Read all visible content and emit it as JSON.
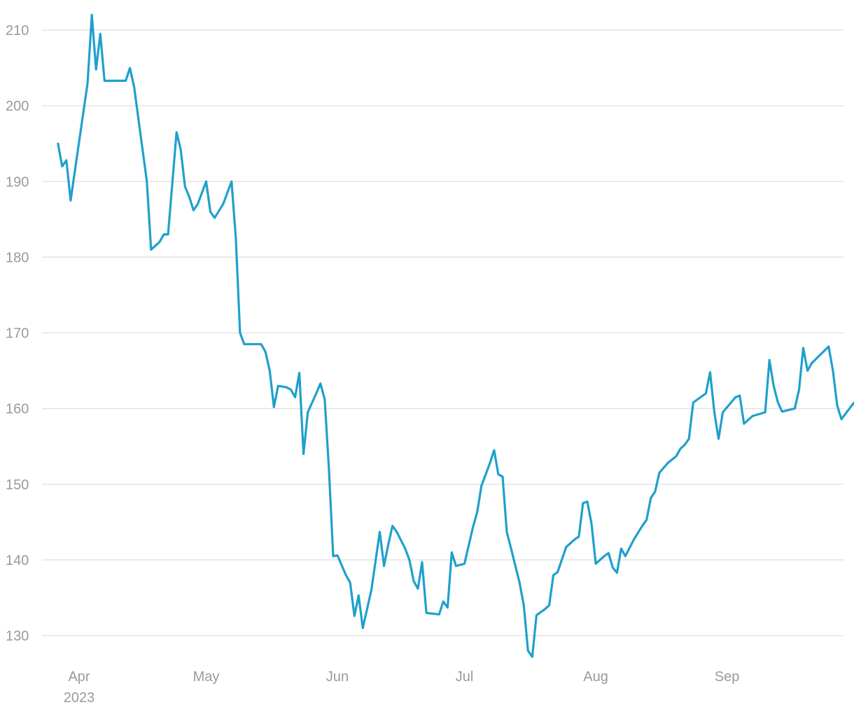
{
  "chart_data": {
    "type": "line",
    "title": "",
    "xlabel": "",
    "ylabel": "",
    "grid": "horizontal",
    "legend": "none",
    "series_color": "#1fa0cc",
    "grid_color": "#e3e3e3",
    "label_color": "#9a9a9a",
    "ylim": [
      126,
      212
    ],
    "yticks": [
      130,
      140,
      150,
      160,
      170,
      180,
      190,
      200,
      210
    ],
    "xlim": [
      "2023-03-24",
      "2023-09-27"
    ],
    "xticks": [
      {
        "date": "2023-04-01",
        "label": "Apr",
        "sublabel": "2023"
      },
      {
        "date": "2023-05-01",
        "label": "May",
        "sublabel": ""
      },
      {
        "date": "2023-06-01",
        "label": "Jun",
        "sublabel": ""
      },
      {
        "date": "2023-07-01",
        "label": "Jul",
        "sublabel": ""
      },
      {
        "date": "2023-08-01",
        "label": "Aug",
        "sublabel": ""
      },
      {
        "date": "2023-09-01",
        "label": "Sep",
        "sublabel": ""
      }
    ],
    "series": [
      {
        "points": [
          [
            "2023-03-27",
            195.0
          ],
          [
            "2023-03-28",
            192.0
          ],
          [
            "2023-03-29",
            192.8
          ],
          [
            "2023-03-30",
            187.5
          ],
          [
            "2023-04-03",
            203.0
          ],
          [
            "2023-04-04",
            212.0
          ],
          [
            "2023-04-05",
            204.8
          ],
          [
            "2023-04-06",
            209.5
          ],
          [
            "2023-04-07",
            203.3
          ],
          [
            "2023-04-10",
            203.3
          ],
          [
            "2023-04-11",
            203.3
          ],
          [
            "2023-04-12",
            203.3
          ],
          [
            "2023-04-13",
            205.0
          ],
          [
            "2023-04-14",
            202.5
          ],
          [
            "2023-04-17",
            190.0
          ],
          [
            "2023-04-18",
            181.0
          ],
          [
            "2023-04-20",
            182.0
          ],
          [
            "2023-04-21",
            183.0
          ],
          [
            "2023-04-22",
            183.0
          ],
          [
            "2023-04-24",
            196.5
          ],
          [
            "2023-04-25",
            194.2
          ],
          [
            "2023-04-26",
            189.3
          ],
          [
            "2023-04-27",
            188.0
          ],
          [
            "2023-04-28",
            186.2
          ],
          [
            "2023-04-29",
            187.0
          ],
          [
            "2023-05-01",
            190.0
          ],
          [
            "2023-05-02",
            186.0
          ],
          [
            "2023-05-03",
            185.2
          ],
          [
            "2023-05-05",
            187.0
          ],
          [
            "2023-05-07",
            190.0
          ],
          [
            "2023-05-08",
            182.5
          ],
          [
            "2023-05-09",
            170.0
          ],
          [
            "2023-05-10",
            168.5
          ],
          [
            "2023-05-12",
            168.5
          ],
          [
            "2023-05-14",
            168.5
          ],
          [
            "2023-05-15",
            167.5
          ],
          [
            "2023-05-16",
            165.0
          ],
          [
            "2023-05-17",
            160.2
          ],
          [
            "2023-05-18",
            163.0
          ],
          [
            "2023-05-20",
            162.8
          ],
          [
            "2023-05-21",
            162.5
          ],
          [
            "2023-05-22",
            161.5
          ],
          [
            "2023-05-23",
            164.7
          ],
          [
            "2023-05-24",
            154.0
          ],
          [
            "2023-05-25",
            159.5
          ],
          [
            "2023-05-27",
            162.0
          ],
          [
            "2023-05-28",
            163.3
          ],
          [
            "2023-05-29",
            161.2
          ],
          [
            "2023-05-30",
            152.0
          ],
          [
            "2023-05-31",
            140.5
          ],
          [
            "2023-06-01",
            140.6
          ],
          [
            "2023-06-03",
            138.0
          ],
          [
            "2023-06-04",
            137.0
          ],
          [
            "2023-06-05",
            132.6
          ],
          [
            "2023-06-06",
            135.3
          ],
          [
            "2023-06-07",
            131.0
          ],
          [
            "2023-06-09",
            136.0
          ],
          [
            "2023-06-11",
            143.7
          ],
          [
            "2023-06-12",
            139.2
          ],
          [
            "2023-06-13",
            142.0
          ],
          [
            "2023-06-14",
            144.5
          ],
          [
            "2023-06-15",
            143.7
          ],
          [
            "2023-06-17",
            141.5
          ],
          [
            "2023-06-18",
            140.0
          ],
          [
            "2023-06-19",
            137.2
          ],
          [
            "2023-06-20",
            136.2
          ],
          [
            "2023-06-21",
            139.7
          ],
          [
            "2023-06-22",
            133.0
          ],
          [
            "2023-06-25",
            132.8
          ],
          [
            "2023-06-26",
            134.5
          ],
          [
            "2023-06-27",
            133.7
          ],
          [
            "2023-06-28",
            141.0
          ],
          [
            "2023-06-29",
            139.2
          ],
          [
            "2023-07-01",
            139.5
          ],
          [
            "2023-07-03",
            144.3
          ],
          [
            "2023-07-04",
            146.3
          ],
          [
            "2023-07-05",
            149.8
          ],
          [
            "2023-07-07",
            152.8
          ],
          [
            "2023-07-08",
            154.5
          ],
          [
            "2023-07-09",
            151.3
          ],
          [
            "2023-07-10",
            151.0
          ],
          [
            "2023-07-11",
            143.7
          ],
          [
            "2023-07-12",
            141.5
          ],
          [
            "2023-07-14",
            137.0
          ],
          [
            "2023-07-15",
            134.0
          ],
          [
            "2023-07-16",
            128.0
          ],
          [
            "2023-07-17",
            127.2
          ],
          [
            "2023-07-18",
            132.7
          ],
          [
            "2023-07-20",
            133.5
          ],
          [
            "2023-07-21",
            134.0
          ],
          [
            "2023-07-22",
            138.0
          ],
          [
            "2023-07-23",
            138.4
          ],
          [
            "2023-07-25",
            141.7
          ],
          [
            "2023-07-27",
            142.7
          ],
          [
            "2023-07-28",
            143.1
          ],
          [
            "2023-07-29",
            147.5
          ],
          [
            "2023-07-30",
            147.7
          ],
          [
            "2023-07-31",
            144.8
          ],
          [
            "2023-08-01",
            139.5
          ],
          [
            "2023-08-03",
            140.5
          ],
          [
            "2023-08-04",
            140.9
          ],
          [
            "2023-08-05",
            139.0
          ],
          [
            "2023-08-06",
            138.3
          ],
          [
            "2023-08-07",
            141.5
          ],
          [
            "2023-08-08",
            140.5
          ],
          [
            "2023-08-10",
            142.7
          ],
          [
            "2023-08-12",
            144.5
          ],
          [
            "2023-08-13",
            145.3
          ],
          [
            "2023-08-14",
            148.2
          ],
          [
            "2023-08-15",
            149.0
          ],
          [
            "2023-08-16",
            151.5
          ],
          [
            "2023-08-18",
            152.8
          ],
          [
            "2023-08-20",
            153.7
          ],
          [
            "2023-08-21",
            154.7
          ],
          [
            "2023-08-22",
            155.2
          ],
          [
            "2023-08-23",
            156.0
          ],
          [
            "2023-08-24",
            160.8
          ],
          [
            "2023-08-27",
            162.0
          ],
          [
            "2023-08-28",
            164.8
          ],
          [
            "2023-08-29",
            159.5
          ],
          [
            "2023-08-30",
            156.0
          ],
          [
            "2023-08-31",
            159.5
          ],
          [
            "2023-09-03",
            161.5
          ],
          [
            "2023-09-04",
            161.7
          ],
          [
            "2023-09-05",
            158.0
          ],
          [
            "2023-09-07",
            159.0
          ],
          [
            "2023-09-10",
            159.5
          ],
          [
            "2023-09-11",
            166.4
          ],
          [
            "2023-09-12",
            163.0
          ],
          [
            "2023-09-13",
            160.8
          ],
          [
            "2023-09-14",
            159.6
          ],
          [
            "2023-09-17",
            160.0
          ],
          [
            "2023-09-18",
            162.5
          ],
          [
            "2023-09-19",
            168.0
          ],
          [
            "2023-09-20",
            165.0
          ],
          [
            "2023-09-21",
            166.0
          ],
          [
            "2023-09-25",
            168.2
          ],
          [
            "2023-09-26",
            165.0
          ],
          [
            "2023-09-27",
            160.4
          ],
          [
            "2023-09-28",
            158.6
          ],
          [
            "2023-10-01",
            160.8
          ]
        ]
      }
    ]
  }
}
